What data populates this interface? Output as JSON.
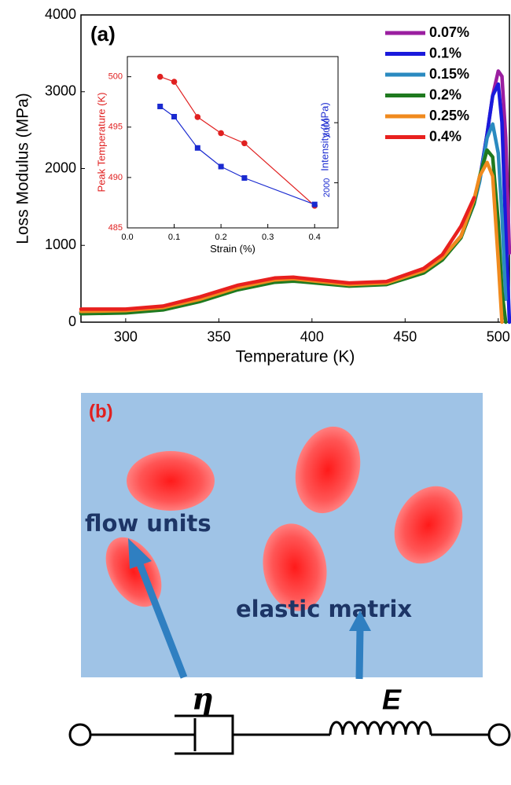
{
  "chart_data": [
    {
      "type": "line",
      "panel_label": "(a)",
      "x_label": "Temperature (K)",
      "y_label": "Loss Modulus (MPa)",
      "x": [
        276,
        300,
        320,
        340,
        360,
        380,
        390,
        400,
        420,
        440,
        460,
        470,
        480,
        487,
        490,
        494,
        497,
        500,
        502,
        504,
        506
      ],
      "series": [
        {
          "name": "0.07%",
          "color": "#9b1fa0",
          "values": [
            130,
            140,
            180,
            290,
            440,
            540,
            555,
            535,
            490,
            510,
            660,
            830,
            1120,
            1550,
            1850,
            2450,
            2950,
            3270,
            3200,
            2400,
            900
          ]
        },
        {
          "name": "0.1%",
          "color": "#1a1adc",
          "values": [
            130,
            140,
            180,
            290,
            440,
            540,
            555,
            535,
            490,
            510,
            660,
            830,
            1120,
            1550,
            1850,
            2450,
            2950,
            3100,
            2600,
            1200,
            0
          ]
        },
        {
          "name": "0.15%",
          "color": "#2a8ac0",
          "values": [
            120,
            130,
            170,
            280,
            430,
            530,
            545,
            525,
            480,
            500,
            650,
            820,
            1110,
            1540,
            1830,
            2400,
            2580,
            2200,
            1400,
            300,
            null
          ]
        },
        {
          "name": "0.2%",
          "color": "#1f7a1f",
          "values": [
            110,
            120,
            160,
            270,
            420,
            520,
            535,
            515,
            470,
            490,
            640,
            810,
            1100,
            1550,
            1900,
            2240,
            2150,
            1300,
            400,
            0,
            null
          ]
        },
        {
          "name": "0.25%",
          "color": "#f08a1e",
          "values": [
            140,
            150,
            190,
            300,
            450,
            550,
            565,
            540,
            490,
            510,
            670,
            840,
            1120,
            1600,
            1900,
            2080,
            1900,
            800,
            0,
            null,
            null
          ]
        },
        {
          "name": "0.4%",
          "color": "#e8201e",
          "values": [
            170,
            170,
            210,
            330,
            480,
            575,
            585,
            560,
            510,
            530,
            700,
            880,
            1250,
            1620,
            null,
            null,
            null,
            null,
            null,
            null,
            null
          ]
        }
      ],
      "xlim": [
        276,
        506
      ],
      "xticks": [
        300,
        350,
        400,
        450,
        500
      ],
      "ylim": [
        0,
        4000
      ],
      "yticks": [
        0,
        1000,
        2000,
        3000,
        4000
      ],
      "legend": "upper right"
    },
    {
      "type": "line",
      "x_label": "Strain (%)",
      "y_label": "Peak Temperature (K)",
      "y2_label": "Intensity (MPa)",
      "x": [
        0.07,
        0.1,
        0.15,
        0.2,
        0.25,
        0.4
      ],
      "series": [
        {
          "color": "#e02020",
          "marker": "circle",
          "values": [
            500.0,
            499.5,
            496.0,
            494.4,
            493.4,
            487.2
          ]
        },
        {
          "color": "#1a2ad0",
          "marker": "square",
          "axis": "y2",
          "values": [
            3270,
            3100,
            2580,
            2270,
            2080,
            1640
          ]
        }
      ],
      "xlim": [
        0,
        0.45
      ],
      "xticks": [
        {
          "value": 0,
          "label": "0.0"
        },
        0.1,
        0.2,
        0.3,
        0.4
      ],
      "ylim": [
        485,
        502
      ],
      "yticks": [
        485,
        490,
        495,
        500
      ],
      "y2lim": [
        1250,
        4100
      ],
      "y2ticks": [
        2000,
        3000
      ]
    }
  ],
  "diagram": {
    "panel_label": "(b)",
    "flow_units": "flow units",
    "elastic_matrix": "elastic matrix",
    "eta": "η",
    "E": "E"
  }
}
